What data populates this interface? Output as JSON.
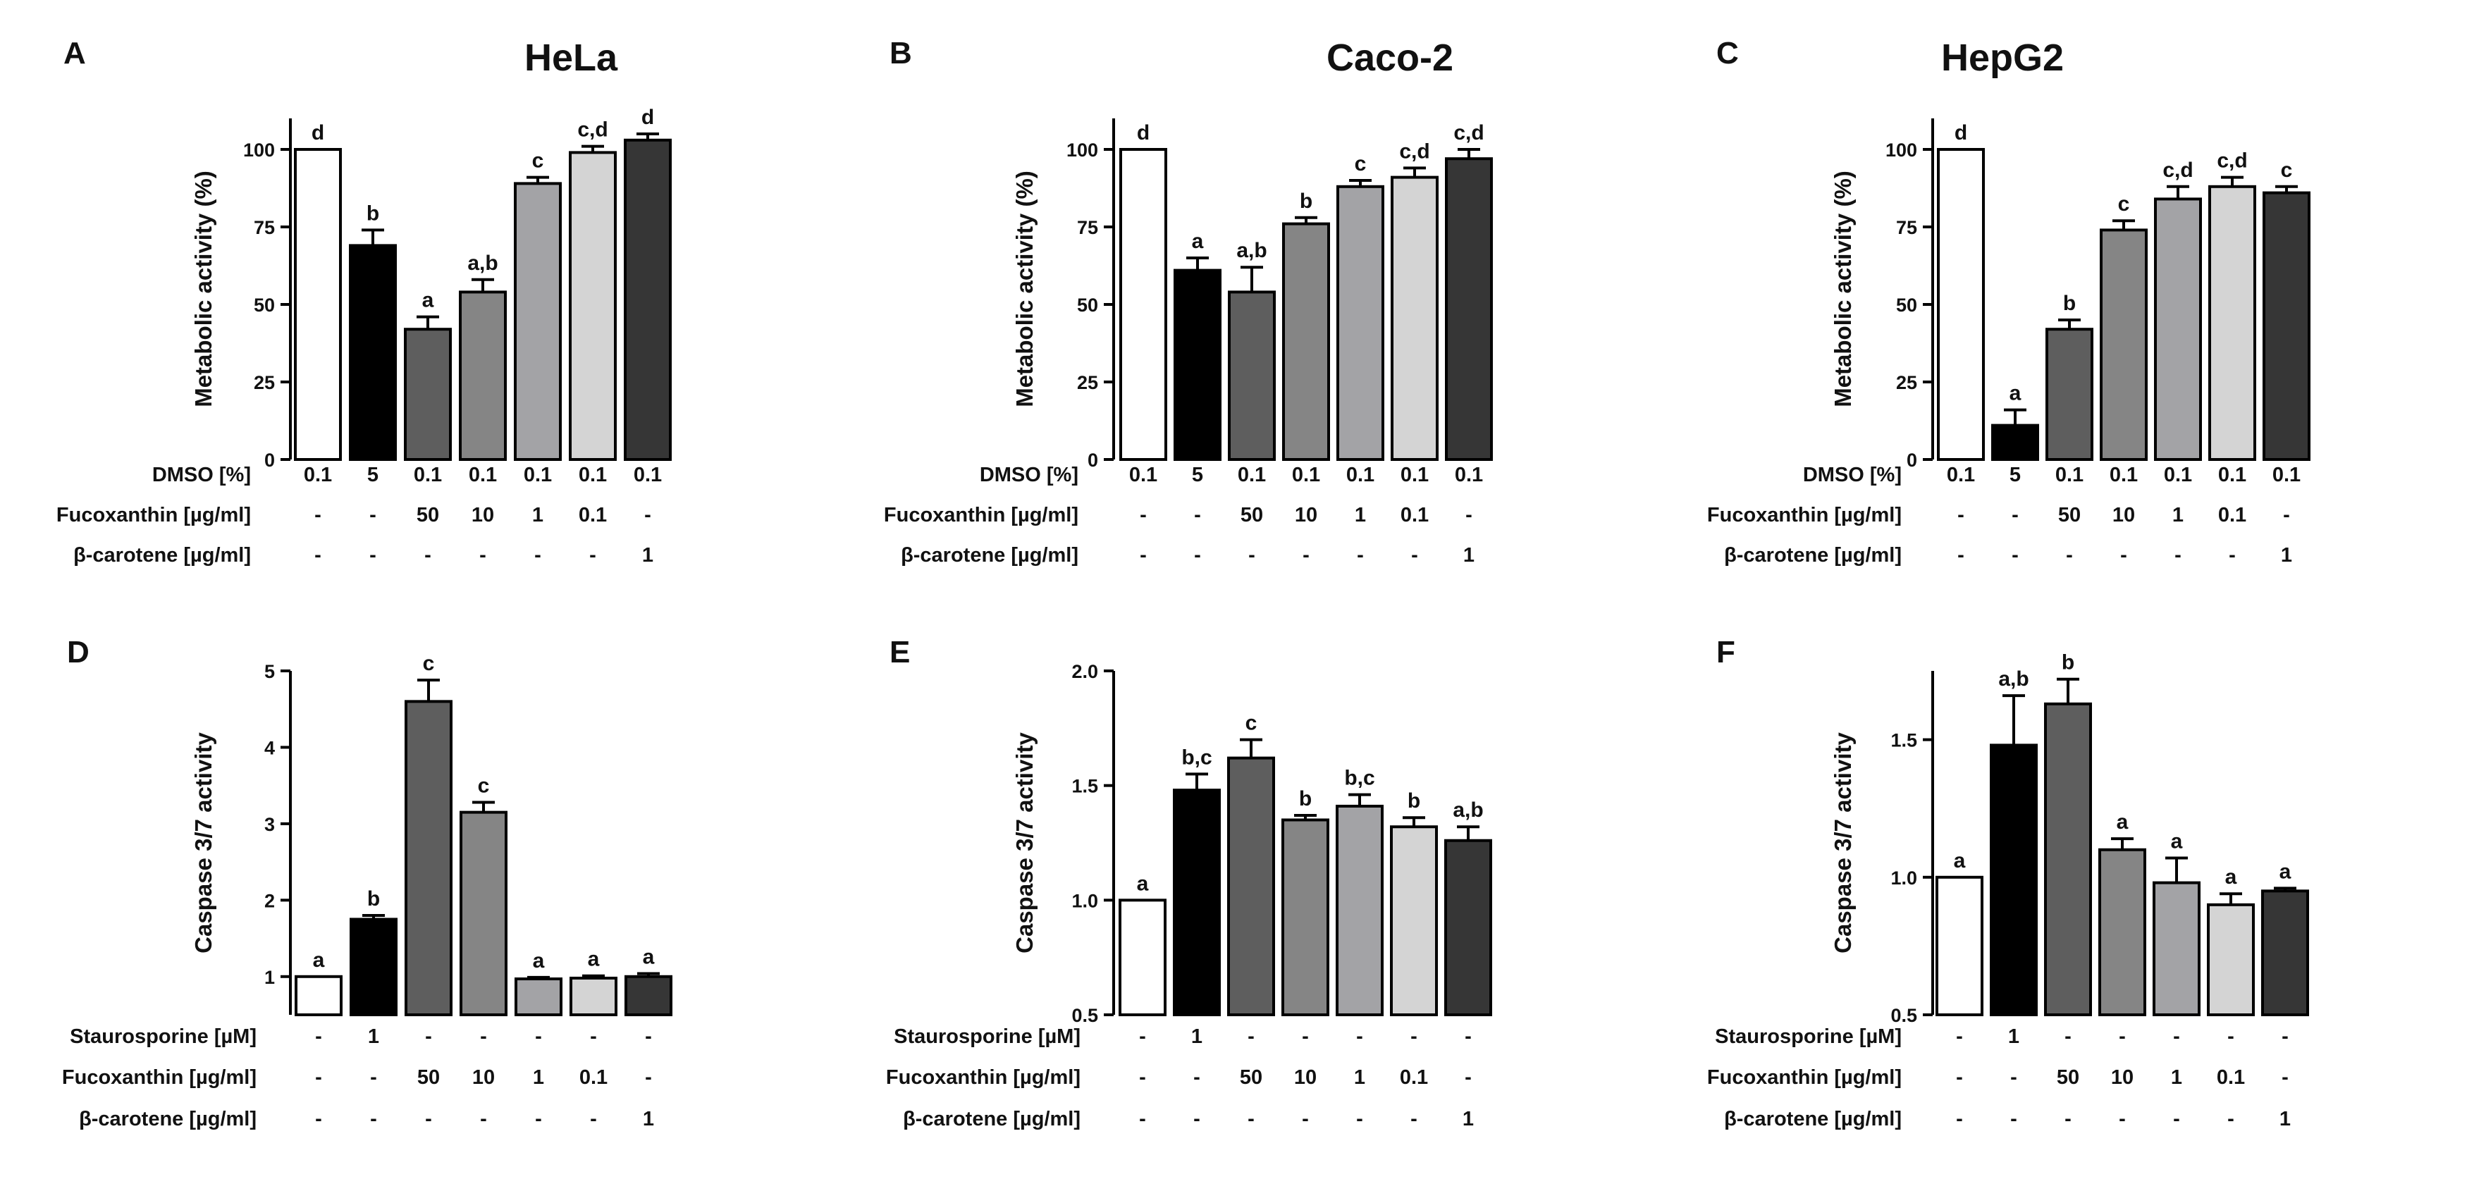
{
  "chart_data": [
    {
      "panel_label": "A",
      "title": "HeLa",
      "type": "bar",
      "ylabel": "Metabolic activity (%)",
      "ylim": [
        0,
        110
      ],
      "yticks": [
        "0",
        "25",
        "50",
        "75",
        "100"
      ],
      "ytick_values": [
        0,
        25,
        50,
        75,
        100
      ],
      "values": [
        100,
        69,
        42,
        54,
        89,
        99,
        103
      ],
      "errors": [
        0,
        5,
        4,
        4,
        2,
        2,
        2
      ],
      "significance": [
        "d",
        "b",
        "a",
        "a,b",
        "c",
        "c,d",
        "d"
      ],
      "bar_colors": [
        "#ffffff",
        "#000000",
        "#5e5e5e",
        "#858585",
        "#a3a3a6",
        "#d4d4d4",
        "#363636"
      ],
      "conditions": [
        {
          "label": "DMSO [%]",
          "values": [
            "0.1",
            "5",
            "0.1",
            "0.1",
            "0.1",
            "0.1",
            "0.1"
          ]
        },
        {
          "label": "Fucoxanthin [µg/ml]",
          "values": [
            "-",
            "-",
            "50",
            "10",
            "1",
            "0.1",
            "-"
          ]
        },
        {
          "label": "β-carotene [µg/ml]",
          "values": [
            "-",
            "-",
            "-",
            "-",
            "-",
            "-",
            "1"
          ]
        }
      ]
    },
    {
      "panel_label": "B",
      "title": "Caco-2",
      "type": "bar",
      "ylabel": "Metabolic activity (%)",
      "ylim": [
        0,
        110
      ],
      "yticks": [
        "0",
        "25",
        "50",
        "75",
        "100"
      ],
      "ytick_values": [
        0,
        25,
        50,
        75,
        100
      ],
      "values": [
        100,
        61,
        54,
        76,
        88,
        91,
        97
      ],
      "errors": [
        0,
        4,
        8,
        2,
        2,
        3,
        3
      ],
      "significance": [
        "d",
        "a",
        "a,b",
        "b",
        "c",
        "c,d",
        "c,d"
      ],
      "bar_colors": [
        "#ffffff",
        "#000000",
        "#5e5e5e",
        "#858585",
        "#a3a3a6",
        "#d4d4d4",
        "#363636"
      ],
      "conditions": [
        {
          "label": "DMSO [%]",
          "values": [
            "0.1",
            "5",
            "0.1",
            "0.1",
            "0.1",
            "0.1",
            "0.1"
          ]
        },
        {
          "label": "Fucoxanthin [µg/ml]",
          "values": [
            "-",
            "-",
            "50",
            "10",
            "1",
            "0.1",
            "-"
          ]
        },
        {
          "label": "β-carotene [µg/ml]",
          "values": [
            "-",
            "-",
            "-",
            "-",
            "-",
            "-",
            "1"
          ]
        }
      ]
    },
    {
      "panel_label": "C",
      "title": "HepG2",
      "type": "bar",
      "ylabel": "Metabolic activity (%)",
      "ylim": [
        0,
        110
      ],
      "yticks": [
        "0",
        "25",
        "50",
        "75",
        "100"
      ],
      "ytick_values": [
        0,
        25,
        50,
        75,
        100
      ],
      "values": [
        100,
        11,
        42,
        74,
        84,
        88,
        86
      ],
      "errors": [
        0,
        5,
        3,
        3,
        4,
        3,
        2
      ],
      "significance": [
        "d",
        "a",
        "b",
        "c",
        "c,d",
        "c,d",
        "c"
      ],
      "bar_colors": [
        "#ffffff",
        "#000000",
        "#5e5e5e",
        "#858585",
        "#a3a3a6",
        "#d4d4d4",
        "#363636"
      ],
      "conditions": [
        {
          "label": "DMSO [%]",
          "values": [
            "0.1",
            "5",
            "0.1",
            "0.1",
            "0.1",
            "0.1",
            "0.1"
          ]
        },
        {
          "label": "Fucoxanthin [µg/ml]",
          "values": [
            "-",
            "-",
            "50",
            "10",
            "1",
            "0.1",
            "-"
          ]
        },
        {
          "label": "β-carotene [µg/ml]",
          "values": [
            "-",
            "-",
            "-",
            "-",
            "-",
            "-",
            "1"
          ]
        }
      ]
    },
    {
      "panel_label": "D",
      "title": "",
      "type": "bar",
      "ylabel": "Caspase 3/7 activity",
      "ylim": [
        0.5,
        5
      ],
      "yticks": [
        "1",
        "2",
        "3",
        "4",
        "5"
      ],
      "ytick_values": [
        1,
        2,
        3,
        4,
        5
      ],
      "values": [
        1.0,
        1.75,
        4.6,
        3.15,
        0.97,
        0.98,
        1.0
      ],
      "errors": [
        0,
        0.05,
        0.28,
        0.13,
        0.02,
        0.03,
        0.04
      ],
      "significance": [
        "a",
        "b",
        "c",
        "c",
        "a",
        "a",
        "a"
      ],
      "bar_colors": [
        "#ffffff",
        "#000000",
        "#5e5e5e",
        "#858585",
        "#a3a3a6",
        "#d4d4d4",
        "#363636"
      ],
      "conditions": [
        {
          "label": "Staurosporine [µM]",
          "values": [
            "-",
            "1",
            "-",
            "-",
            "-",
            "-",
            "-"
          ]
        },
        {
          "label": "Fucoxanthin [µg/ml]",
          "values": [
            "-",
            "-",
            "50",
            "10",
            "1",
            "0.1",
            "-"
          ]
        },
        {
          "label": "β-carotene [µg/ml]",
          "values": [
            "-",
            "-",
            "-",
            "-",
            "-",
            "-",
            "1"
          ]
        }
      ]
    },
    {
      "panel_label": "E",
      "title": "",
      "type": "bar",
      "ylabel": "Caspase 3/7 activity",
      "ylim": [
        0.5,
        2.0
      ],
      "yticks": [
        "0.5",
        "1.0",
        "1.5",
        "2.0"
      ],
      "ytick_values": [
        0.5,
        1.0,
        1.5,
        2.0
      ],
      "values": [
        1.0,
        1.48,
        1.62,
        1.35,
        1.41,
        1.32,
        1.26
      ],
      "errors": [
        0,
        0.07,
        0.08,
        0.02,
        0.05,
        0.04,
        0.06
      ],
      "significance": [
        "a",
        "b,c",
        "c",
        "b",
        "b,c",
        "b",
        "a,b"
      ],
      "bar_colors": [
        "#ffffff",
        "#000000",
        "#5e5e5e",
        "#858585",
        "#a3a3a6",
        "#d4d4d4",
        "#363636"
      ],
      "conditions": [
        {
          "label": "Staurosporine [µM]",
          "values": [
            "-",
            "1",
            "-",
            "-",
            "-",
            "-",
            "-"
          ]
        },
        {
          "label": "Fucoxanthin [µg/ml]",
          "values": [
            "-",
            "-",
            "50",
            "10",
            "1",
            "0.1",
            "-"
          ]
        },
        {
          "label": "β-carotene [µg/ml]",
          "values": [
            "-",
            "-",
            "-",
            "-",
            "-",
            "-",
            "1"
          ]
        }
      ]
    },
    {
      "panel_label": "F",
      "title": "",
      "type": "bar",
      "ylabel": "Caspase 3/7 activity",
      "ylim": [
        0.5,
        1.75
      ],
      "yticks": [
        "0.5",
        "1.0",
        "1.5"
      ],
      "ytick_values": [
        0.5,
        1.0,
        1.5
      ],
      "values": [
        1.0,
        1.48,
        1.63,
        1.1,
        0.98,
        0.9,
        0.95
      ],
      "errors": [
        0,
        0.18,
        0.09,
        0.04,
        0.09,
        0.04,
        0.01
      ],
      "significance": [
        "a",
        "a,b",
        "b",
        "a",
        "a",
        "a",
        "a"
      ],
      "bar_colors": [
        "#ffffff",
        "#000000",
        "#5e5e5e",
        "#858585",
        "#a3a3a6",
        "#d4d4d4",
        "#363636"
      ],
      "conditions": [
        {
          "label": "Staurosporine [µM]",
          "values": [
            "-",
            "1",
            "-",
            "-",
            "-",
            "-",
            "-"
          ]
        },
        {
          "label": "Fucoxanthin [µg/ml]",
          "values": [
            "-",
            "-",
            "50",
            "10",
            "1",
            "0.1",
            "-"
          ]
        },
        {
          "label": "β-carotene [µg/ml]",
          "values": [
            "-",
            "-",
            "-",
            "-",
            "-",
            "-",
            "1"
          ]
        }
      ]
    }
  ]
}
